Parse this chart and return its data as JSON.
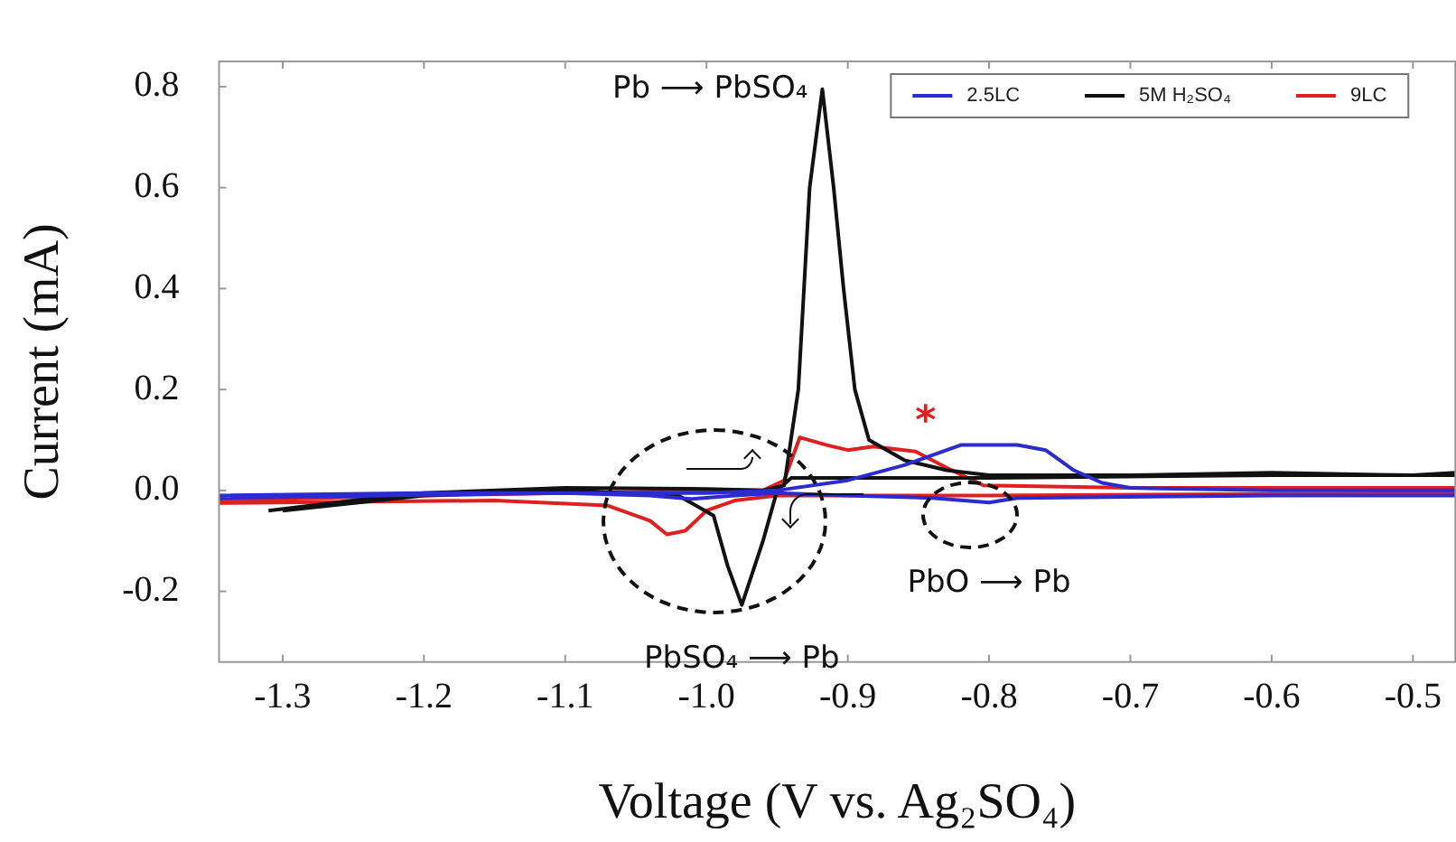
{
  "chart_data": {
    "type": "line",
    "xlabel": "Voltage (V vs. Ag₂SO₄)",
    "ylabel": "Current (mA)",
    "xlim": [
      -1.345,
      -0.47
    ],
    "xticks": [
      {
        "value": -1.3,
        "label": "-1.3"
      },
      {
        "value": -1.2,
        "label": "-1.2"
      },
      {
        "value": -1.1,
        "label": "-1.1"
      },
      {
        "value": -1.0,
        "label": "-1.0"
      },
      {
        "value": -0.9,
        "label": "-0.9"
      },
      {
        "value": -0.8,
        "label": "-0.8"
      },
      {
        "value": -0.7,
        "label": "-0.7"
      },
      {
        "value": -0.6,
        "label": "-0.6"
      },
      {
        "value": -0.5,
        "label": "-0.5"
      }
    ],
    "ylim": [
      -0.34,
      0.85
    ],
    "yticks": [
      {
        "value": -0.2,
        "label": "-0.2"
      },
      {
        "value": 0,
        "label": "0.0"
      },
      {
        "value": 0.2,
        "label": "0.2"
      },
      {
        "value": 0.4,
        "label": "0.4"
      },
      {
        "value": 0.6,
        "label": "0.6"
      },
      {
        "value": 0.8,
        "label": "0.8"
      }
    ],
    "grid": false,
    "legend": "top right",
    "marker": "none",
    "line_style": "solid",
    "series": [
      {
        "name": "2.5LC",
        "color": "#2b2bd0",
        "x": [
          -1.345,
          -1.2,
          -1.0,
          -0.95,
          -0.9,
          -0.86,
          -0.82,
          -0.78,
          -0.76,
          -0.74,
          -0.72,
          -0.7,
          -0.6,
          -0.47,
          -0.47,
          -0.6,
          -0.78,
          -0.8,
          -0.84,
          -0.9,
          -0.95,
          -0.98,
          -1.01,
          -1.04,
          -1.1,
          -1.345
        ],
        "values": [
          -0.01,
          -0.005,
          -0.005,
          0.0,
          0.02,
          0.05,
          0.09,
          0.09,
          0.08,
          0.04,
          0.015,
          0.005,
          0.0,
          0.0,
          -0.01,
          -0.01,
          -0.015,
          -0.024,
          -0.015,
          -0.01,
          -0.005,
          -0.01,
          -0.017,
          -0.01,
          -0.005,
          -0.015
        ]
      },
      {
        "name": "5M H₂SO₄",
        "color": "#111111",
        "x": [
          -1.31,
          -1.25,
          -1.2,
          -1.1,
          -1.0,
          -0.96,
          -0.945,
          -0.935,
          -0.927,
          -0.918,
          -0.91,
          -0.903,
          -0.895,
          -0.885,
          -0.86,
          -0.83,
          -0.8,
          -0.7,
          -0.6,
          -0.5,
          -0.47,
          -0.47,
          -0.6,
          -0.8,
          -0.9,
          -0.94,
          -0.95,
          -0.96,
          -0.975,
          -0.985,
          -0.995,
          -1.02,
          -1.1,
          -1.2,
          -1.3
        ],
        "values": [
          -0.04,
          -0.02,
          -0.005,
          0.005,
          0.003,
          0.0,
          0.01,
          0.2,
          0.6,
          0.795,
          0.6,
          0.4,
          0.2,
          0.1,
          0.06,
          0.04,
          0.03,
          0.03,
          0.035,
          0.03,
          0.035,
          0.03,
          0.03,
          0.025,
          0.025,
          0.025,
          0.0,
          -0.1,
          -0.227,
          -0.15,
          -0.05,
          -0.01,
          0.0,
          -0.01,
          -0.04
        ]
      },
      {
        "name": "9LC",
        "color": "#e02020",
        "x": [
          -1.345,
          -1.2,
          -1.0,
          -0.96,
          -0.945,
          -0.934,
          -0.915,
          -0.9,
          -0.882,
          -0.852,
          -0.83,
          -0.804,
          -0.7,
          -0.47,
          -0.47,
          -0.8,
          -0.95,
          -0.98,
          -1.0,
          -1.015,
          -1.028,
          -1.04,
          -1.07,
          -1.15,
          -1.345
        ],
        "values": [
          -0.02,
          -0.01,
          0.0,
          0.0,
          0.02,
          0.105,
          0.09,
          0.08,
          0.087,
          0.077,
          0.045,
          0.01,
          0.005,
          0.005,
          -0.005,
          -0.01,
          -0.01,
          -0.02,
          -0.04,
          -0.08,
          -0.087,
          -0.06,
          -0.03,
          -0.02,
          -0.025
        ]
      }
    ],
    "annotations": [
      {
        "text": "Pb ⟶ PbSO₄",
        "x": -0.918,
        "y": 0.795
      },
      {
        "text": "PbSO₄ ⟶ Pb",
        "x": -0.975,
        "y": -0.227
      },
      {
        "text": "PbO ⟶ Pb",
        "x": -0.8,
        "y": -0.024
      },
      {
        "text": "*",
        "x": -0.845,
        "y": 0.09
      }
    ]
  }
}
